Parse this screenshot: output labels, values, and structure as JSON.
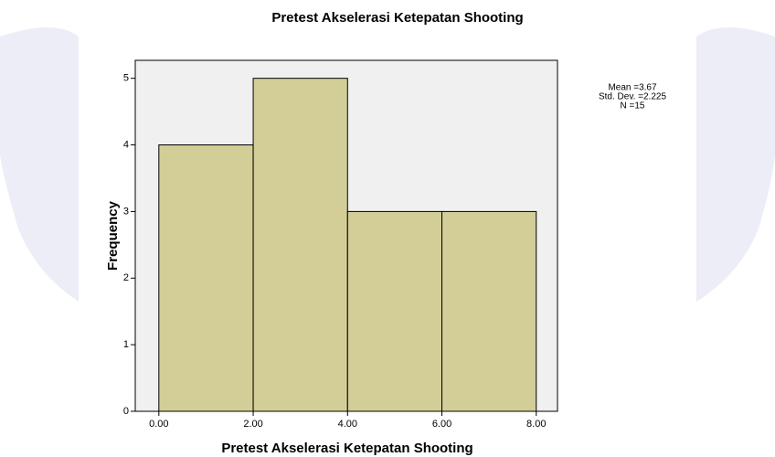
{
  "chart_data": {
    "type": "histogram",
    "title": "Pretest Akselerasi Ketepatan Shooting",
    "x_label": "Pretest Akselerasi Ketepatan Shooting",
    "y_label": "Frequency",
    "bins": [
      0,
      2,
      4,
      6,
      8
    ],
    "values": [
      4,
      5,
      3,
      3
    ],
    "color": "#d3ce97",
    "xlim": [
      -0.5,
      8.45
    ],
    "ylim": [
      0,
      5.27
    ],
    "xticks": [
      {
        "value": 0,
        "label": "0.00"
      },
      {
        "value": 2,
        "label": "2.00"
      },
      {
        "value": 4,
        "label": "4.00"
      },
      {
        "value": 6,
        "label": "6.00"
      },
      {
        "value": 8,
        "label": "8.00"
      }
    ],
    "yticks": [
      0,
      1,
      2,
      3,
      4,
      5
    ],
    "stats": [
      "Mean =3.67",
      "Std. Dev. =2.225",
      "N =15"
    ]
  }
}
